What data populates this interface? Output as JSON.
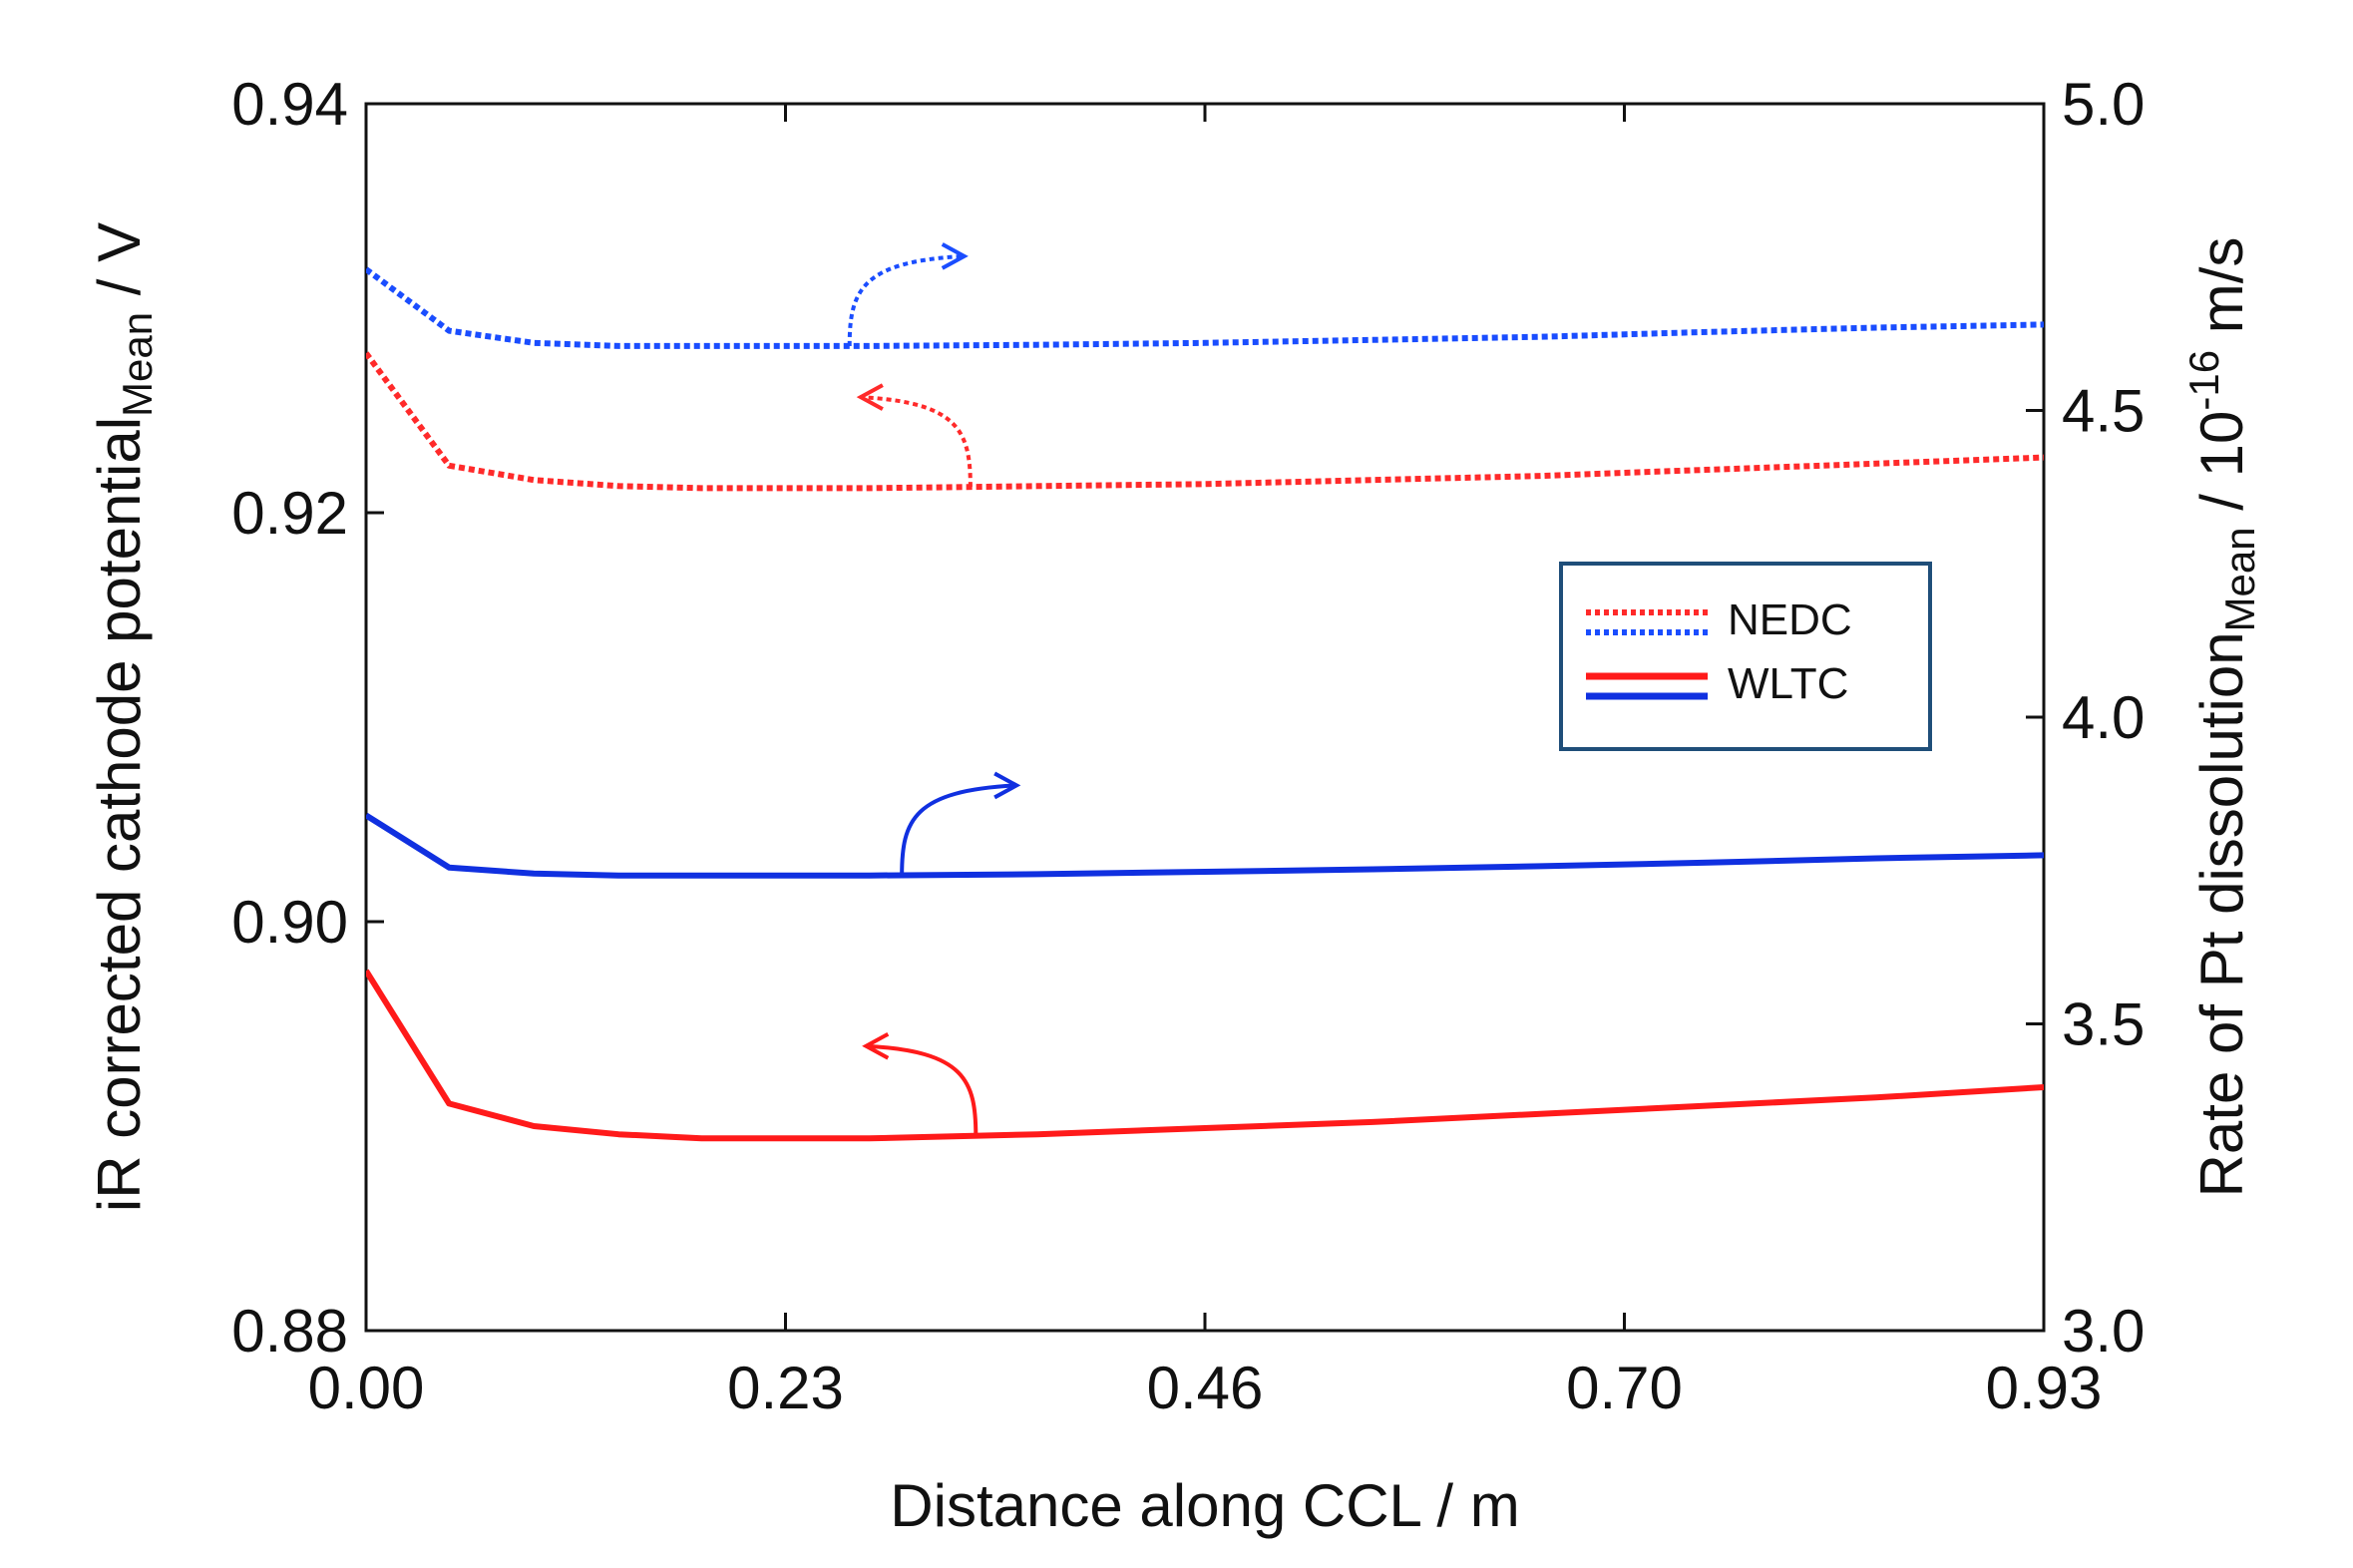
{
  "chart_data": {
    "type": "line",
    "title": "",
    "xlabel": "Distance along CCL  /  m",
    "ylabel_left": {
      "main": "iR corrected cathode potential",
      "sub": "Mean",
      "unit": "  /  V"
    },
    "ylabel_right": {
      "main": "Rate of Pt dissolution",
      "sub": "Mean",
      "unit": "  /  10",
      "unit_exp": "-16",
      "unit_tail": " m/s"
    },
    "xlim": [
      0,
      0.93
    ],
    "ylim_left": [
      0.88,
      0.94
    ],
    "ylim_right": [
      3.0,
      5.0
    ],
    "x_ticks": [
      "0.00",
      "0.23",
      "0.46",
      "0.70",
      "0.93"
    ],
    "x_tick_values": [
      0,
      0.2325,
      0.465,
      0.6975,
      0.93
    ],
    "y_left_ticks": [
      "0.88",
      "0.90",
      "0.92",
      "0.94"
    ],
    "y_left_tick_values": [
      0.88,
      0.9,
      0.92,
      0.94
    ],
    "y_right_ticks": [
      "3.0",
      "3.5",
      "4.0",
      "4.5",
      "5.0"
    ],
    "y_right_tick_values": [
      3.0,
      3.5,
      4.0,
      4.5,
      5.0
    ],
    "legend": [
      {
        "label": "NEDC",
        "style": "dotted",
        "colors": [
          "#ff2a2a",
          "#1a4dff"
        ]
      },
      {
        "label": "WLTC",
        "style": "solid",
        "colors": [
          "#ff1a1a",
          "#1030e0"
        ]
      }
    ],
    "legend_position": "center-right",
    "series": [
      {
        "name": "NEDC potential",
        "cycle": "NEDC",
        "axis": "left",
        "style": "dotted",
        "color": "#ff2a2a",
        "x": [
          0.0,
          0.046,
          0.093,
          0.14,
          0.186,
          0.279,
          0.372,
          0.465,
          0.558,
          0.651,
          0.744,
          0.837,
          0.93
        ],
        "y": [
          0.9278,
          0.9223,
          0.9216,
          0.9213,
          0.9212,
          0.9212,
          0.9213,
          0.9214,
          0.9216,
          0.9218,
          0.9221,
          0.9224,
          0.9227
        ]
      },
      {
        "name": "NEDC Pt dissolution rate",
        "cycle": "NEDC",
        "axis": "right",
        "style": "dotted",
        "color": "#1a4dff",
        "x": [
          0.0,
          0.046,
          0.093,
          0.14,
          0.186,
          0.279,
          0.372,
          0.465,
          0.558,
          0.651,
          0.744,
          0.837,
          0.93
        ],
        "y": [
          4.73,
          4.63,
          4.61,
          4.605,
          4.605,
          4.605,
          4.607,
          4.61,
          4.615,
          4.62,
          4.628,
          4.635,
          4.64
        ]
      },
      {
        "name": "WLTC Pt dissolution rate",
        "cycle": "WLTC",
        "axis": "right",
        "style": "solid",
        "color": "#1030e0",
        "x": [
          0.0,
          0.046,
          0.093,
          0.14,
          0.186,
          0.279,
          0.372,
          0.465,
          0.558,
          0.651,
          0.744,
          0.837,
          0.93
        ],
        "y": [
          3.84,
          3.755,
          3.745,
          3.742,
          3.742,
          3.742,
          3.744,
          3.748,
          3.752,
          3.757,
          3.763,
          3.77,
          3.775
        ]
      },
      {
        "name": "WLTC potential",
        "cycle": "WLTC",
        "axis": "left",
        "style": "solid",
        "color": "#ff1a1a",
        "x": [
          0.0,
          0.046,
          0.093,
          0.14,
          0.186,
          0.279,
          0.372,
          0.465,
          0.558,
          0.651,
          0.744,
          0.837,
          0.93
        ],
        "y": [
          0.8976,
          0.8911,
          0.89,
          0.8896,
          0.8894,
          0.8894,
          0.8896,
          0.8899,
          0.8902,
          0.8906,
          0.891,
          0.8914,
          0.8919
        ]
      }
    ],
    "annotations": [
      {
        "type": "arrow",
        "series": "NEDC Pt dissolution rate",
        "direction": "right",
        "meaning": "read on right axis"
      },
      {
        "type": "arrow",
        "series": "NEDC potential",
        "direction": "left",
        "meaning": "read on left axis"
      },
      {
        "type": "arrow",
        "series": "WLTC Pt dissolution rate",
        "direction": "right",
        "meaning": "read on right axis"
      },
      {
        "type": "arrow",
        "series": "WLTC potential",
        "direction": "left",
        "meaning": "read on left axis"
      }
    ]
  }
}
